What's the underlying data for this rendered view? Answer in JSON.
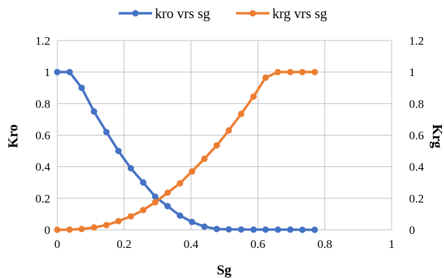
{
  "chart_data": {
    "type": "scatter",
    "title": "",
    "xlabel": "Sg",
    "ylabel": "Kro",
    "y2label": "Krg",
    "xlim": [
      0,
      1
    ],
    "ylim": [
      0,
      1.2
    ],
    "y2lim": [
      0,
      1.2
    ],
    "x_ticks": [
      "0",
      "0.2",
      "0.4",
      "0.6",
      "0.8",
      "1"
    ],
    "y_ticks": [
      "0",
      "0.2",
      "0.4",
      "0.6",
      "0.8",
      "1",
      "1.2"
    ],
    "y2_ticks": [
      "0",
      "0.2",
      "0.4",
      "0.6",
      "0.8",
      "1",
      "1.2"
    ],
    "grid": true,
    "legend_position": "top",
    "series": [
      {
        "name": "kro vrs sg",
        "color": "#4472C4",
        "axis": "left",
        "x": [
          0,
          0.037,
          0.073,
          0.11,
          0.147,
          0.183,
          0.22,
          0.257,
          0.293,
          0.33,
          0.367,
          0.403,
          0.44,
          0.477,
          0.513,
          0.55,
          0.587,
          0.623,
          0.66,
          0.697,
          0.733,
          0.77
        ],
        "y": [
          1,
          1,
          0.9,
          0.75,
          0.62,
          0.5,
          0.39,
          0.3,
          0.21,
          0.15,
          0.09,
          0.05,
          0.02,
          0.005,
          0.003,
          0.002,
          0.001,
          0.001,
          0.001,
          0.001,
          0,
          0
        ]
      },
      {
        "name": "krg vrs sg",
        "color": "#ED7D31",
        "axis": "right",
        "x": [
          0,
          0.037,
          0.073,
          0.11,
          0.147,
          0.183,
          0.22,
          0.257,
          0.293,
          0.33,
          0.367,
          0.403,
          0.44,
          0.477,
          0.513,
          0.55,
          0.587,
          0.623,
          0.66,
          0.697,
          0.733,
          0.77
        ],
        "y": [
          0,
          0.001,
          0.005,
          0.015,
          0.03,
          0.055,
          0.085,
          0.125,
          0.175,
          0.235,
          0.295,
          0.37,
          0.45,
          0.535,
          0.63,
          0.735,
          0.845,
          0.965,
          1,
          1,
          1,
          1
        ]
      }
    ]
  }
}
